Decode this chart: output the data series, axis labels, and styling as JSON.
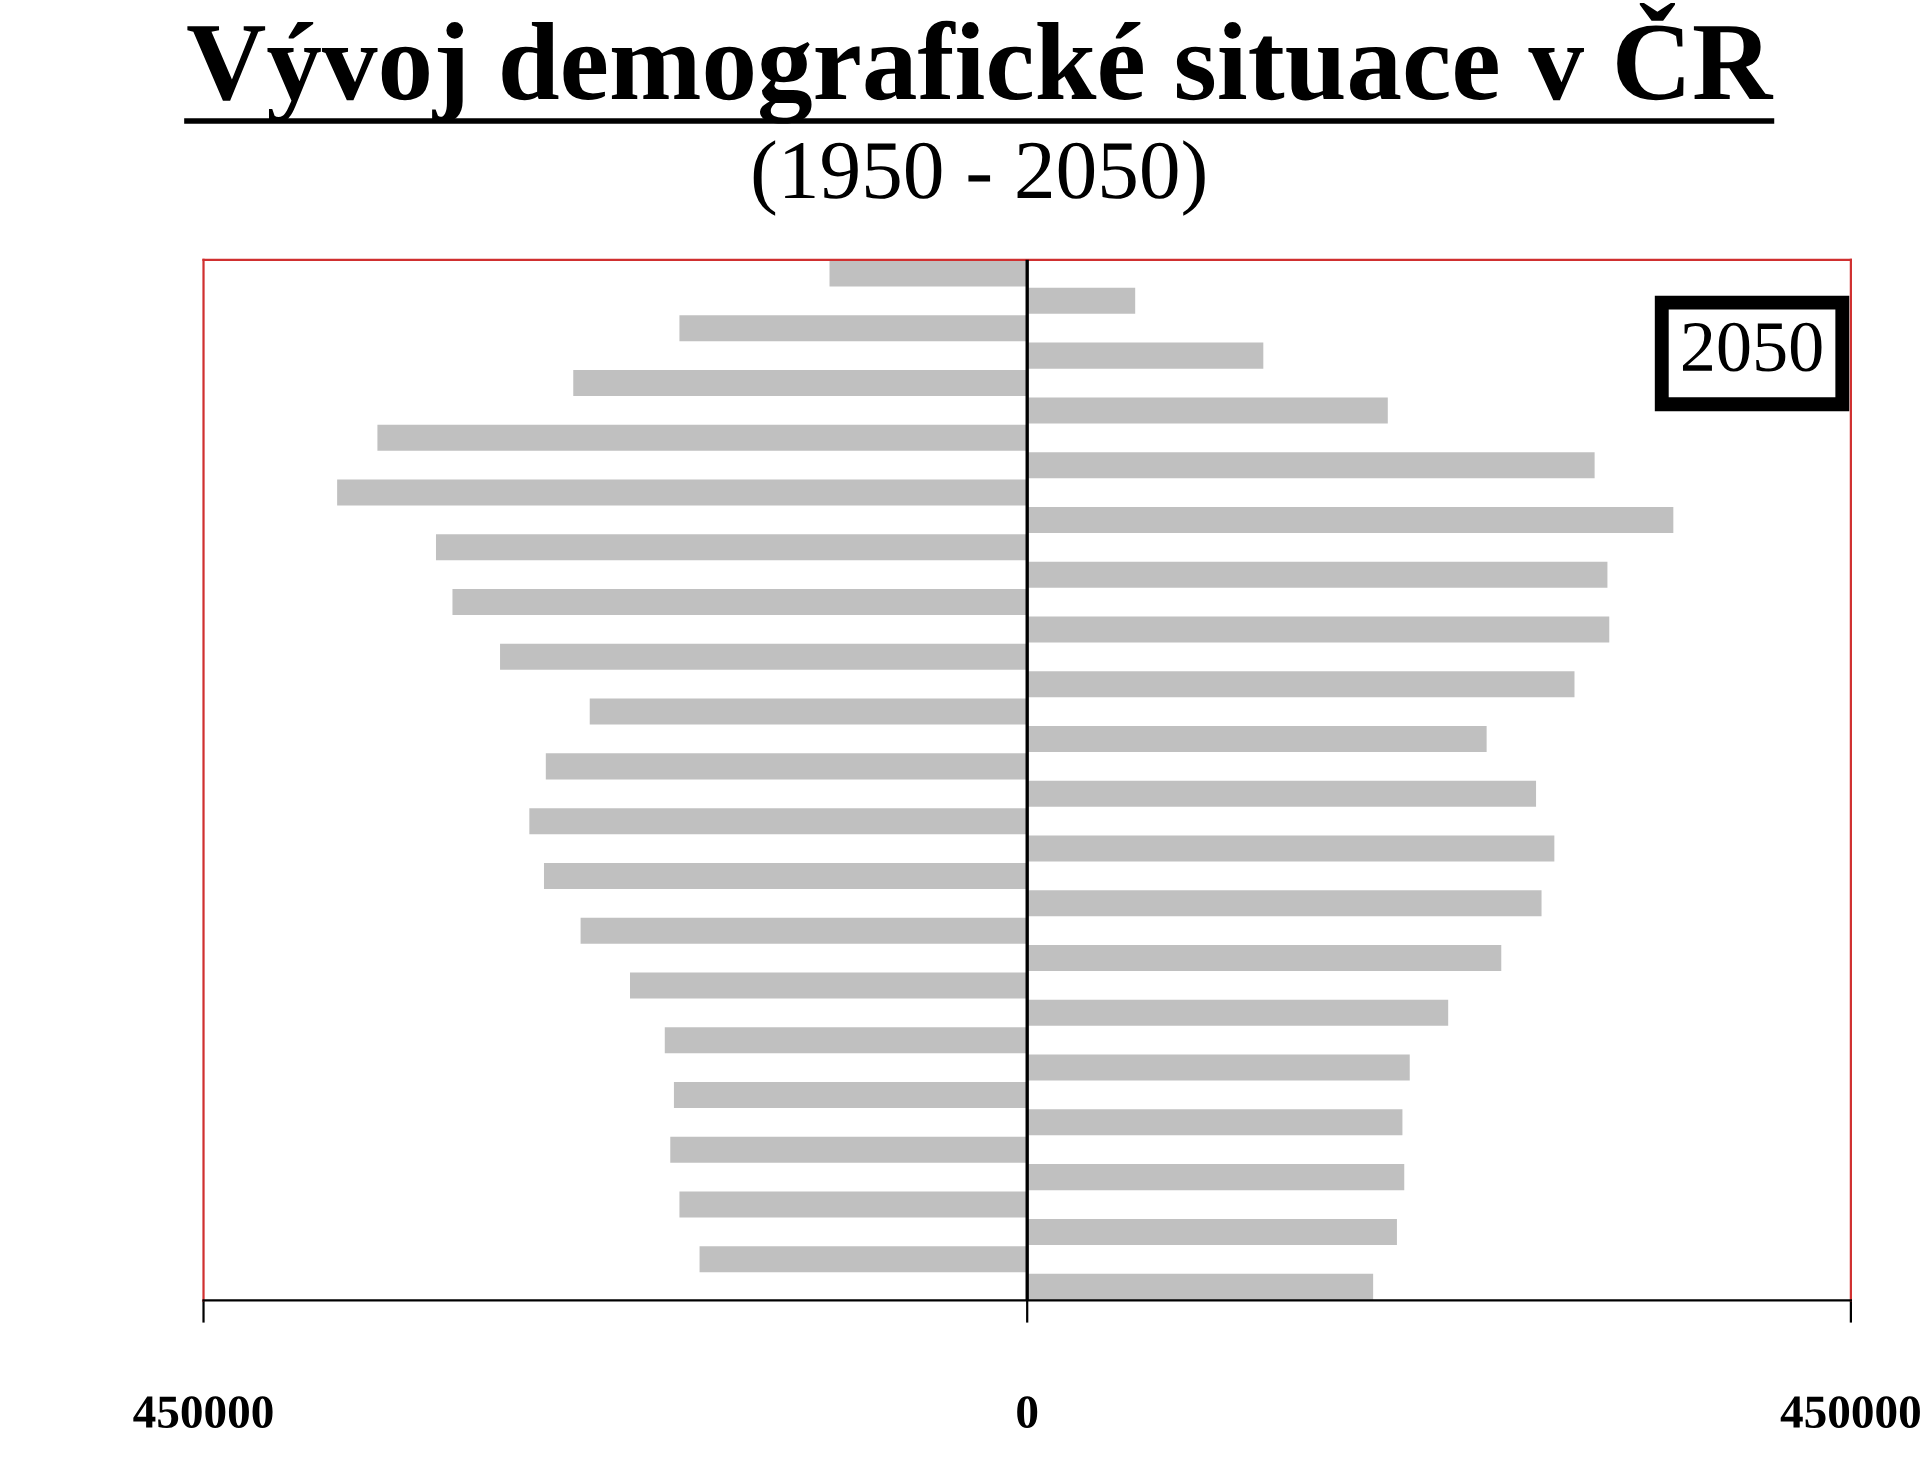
{
  "chart_data": {
    "type": "bar",
    "orientation": "horizontal",
    "title": "Vývoj demografické situace v ČR",
    "subtitle": "(1950 - 2050)",
    "categories": [
      null,
      null,
      null,
      null,
      null,
      null,
      null,
      null,
      null,
      null,
      null,
      null,
      null,
      null,
      null,
      null,
      null,
      null,
      null,
      null,
      null,
      null,
      null,
      null,
      null,
      null,
      null,
      null,
      null,
      null,
      null,
      null,
      null,
      null,
      null,
      null,
      null,
      null
    ],
    "series": [
      {
        "color": "#c0c0c0",
        "values": [
          -108000,
          null,
          -190000,
          null,
          -248000,
          null,
          -355000,
          null,
          -377000,
          null,
          -323000,
          null,
          -314000,
          null,
          -288000,
          null,
          -239000,
          null,
          -263000,
          null,
          -272000,
          null,
          -264000,
          null,
          -244000,
          null,
          -217000,
          null,
          -198000,
          null,
          -193000,
          null,
          -195000,
          null,
          -190000,
          null,
          -179000,
          null
        ]
      },
      {
        "color": "#c0c0c0",
        "values": [
          null,
          59000,
          null,
          129000,
          null,
          197000,
          null,
          310000,
          null,
          353000,
          null,
          317000,
          null,
          318000,
          null,
          299000,
          null,
          251000,
          null,
          278000,
          null,
          288000,
          null,
          281000,
          null,
          259000,
          null,
          230000,
          null,
          209000,
          null,
          205000,
          null,
          206000,
          null,
          202000,
          null,
          189000
        ]
      }
    ],
    "xlim": [
      -450000,
      450000
    ],
    "xticks": [
      {
        "value": -450000,
        "label": "450000"
      },
      0,
      450000
    ],
    "ref_lines": [
      {
        "axis": "x",
        "value": 0,
        "color": "#000000"
      }
    ],
    "annotations": [
      "2050"
    ],
    "grid": false,
    "legend": false
  }
}
